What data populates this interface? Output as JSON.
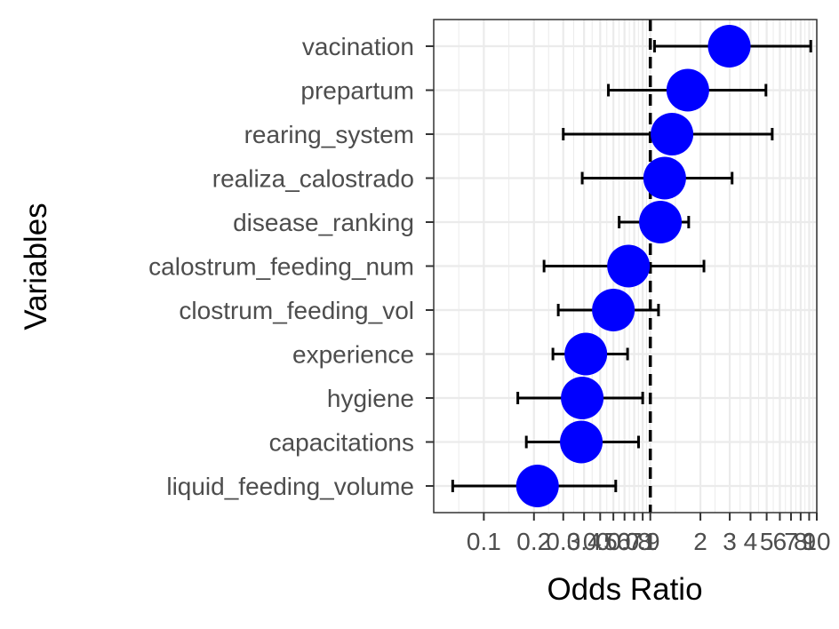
{
  "chart_data": {
    "type": "scatter",
    "subtype": "forest-plot",
    "xlabel": "Odds Ratio",
    "ylabel": "Variables",
    "x_scale": "log10",
    "xlim": [
      0.05,
      10
    ],
    "x_ticks": [
      {
        "value": 0.1,
        "label": "0.1"
      },
      {
        "value": 0.2,
        "label": "0.2"
      },
      {
        "value": 0.3,
        "label": "0.3"
      },
      {
        "value": 0.4,
        "label": "0.4"
      },
      {
        "value": 0.5,
        "label": "0.5"
      },
      {
        "value": 0.6,
        "label": "0.6"
      },
      {
        "value": 0.7,
        "label": "0.7"
      },
      {
        "value": 0.8,
        "label": "0.8"
      },
      {
        "value": 0.9,
        "label": "0.9"
      },
      {
        "value": 1,
        "label": "1"
      },
      {
        "value": 2,
        "label": "2"
      },
      {
        "value": 3,
        "label": "3"
      },
      {
        "value": 4,
        "label": "4"
      },
      {
        "value": 5,
        "label": "5"
      },
      {
        "value": 6,
        "label": "6"
      },
      {
        "value": 7,
        "label": "7"
      },
      {
        "value": 8,
        "label": "8"
      },
      {
        "value": 9,
        "label": "9"
      },
      {
        "value": 10,
        "label": "10"
      }
    ],
    "reference_line": 1,
    "grid": true,
    "rows": [
      {
        "label": "vacination",
        "or": 2.98,
        "lower": 1.06,
        "upper": 9.2
      },
      {
        "label": "prepartum",
        "or": 1.68,
        "lower": 0.56,
        "upper": 4.95
      },
      {
        "label": "rearing_system",
        "or": 1.35,
        "lower": 0.3,
        "upper": 5.4
      },
      {
        "label": "realiza_calostrado",
        "or": 1.22,
        "lower": 0.39,
        "upper": 3.1
      },
      {
        "label": "disease_ranking",
        "or": 1.15,
        "lower": 0.65,
        "upper": 1.7
      },
      {
        "label": "calostrum_feeding_num",
        "or": 0.74,
        "lower": 0.23,
        "upper": 2.1
      },
      {
        "label": "clostrum_feeding_vol",
        "or": 0.6,
        "lower": 0.28,
        "upper": 1.12
      },
      {
        "label": "experience",
        "or": 0.41,
        "lower": 0.26,
        "upper": 0.73
      },
      {
        "label": "hygiene",
        "or": 0.39,
        "lower": 0.16,
        "upper": 0.9
      },
      {
        "label": "capacitations",
        "or": 0.385,
        "lower": 0.18,
        "upper": 0.85
      },
      {
        "label": "liquid_feeding_volume",
        "or": 0.21,
        "lower": 0.065,
        "upper": 0.62
      }
    ],
    "point_color": "#0000ff",
    "errorbar_color": "#000000",
    "reference_line_color": "#000000"
  }
}
